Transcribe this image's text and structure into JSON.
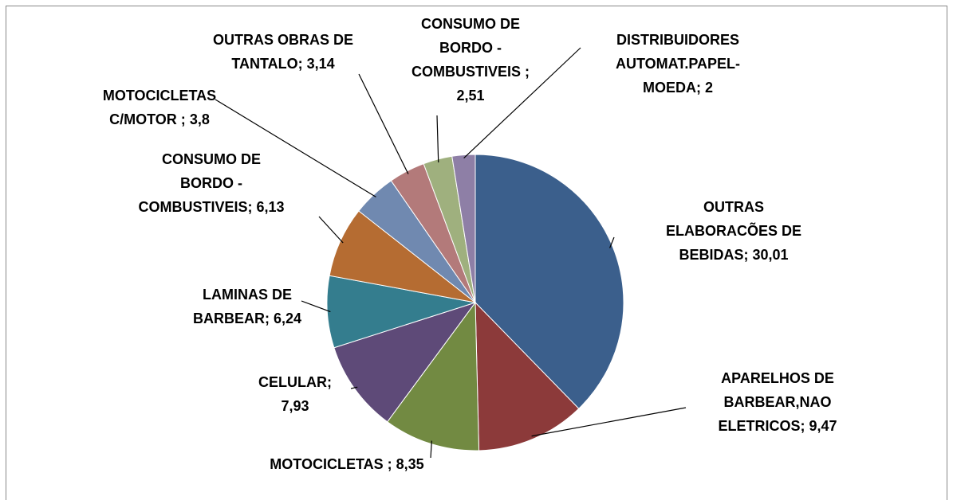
{
  "chart_data": {
    "type": "pie",
    "categories": [
      "OUTRAS ELABORACÕES DE BEBIDAS;",
      "APARELHOS DE BARBEAR,NAO ELETRICOS;",
      "MOTOCICLETAS ;",
      "CELULAR;",
      "LAMINAS DE BARBEAR;",
      "CONSUMO DE BORDO - COMBUSTIVEIS;",
      "MOTOCICLETAS C/MOTOR ;",
      "OUTRAS OBRAS DE TANTALO;",
      "CONSUMO DE BORDO - COMBUSTIVEIS ;",
      "DISTRIBUIDORES AUTOMAT.PAPEL-MOEDA;"
    ],
    "values": [
      30.01,
      9.47,
      8.35,
      7.93,
      6.24,
      6.13,
      3.8,
      3.14,
      2.51,
      2
    ],
    "value_labels": [
      "30,01",
      "9,47",
      "8,35",
      "7,93",
      "6,24",
      "6,13",
      "3,8",
      "3,14",
      "2,51",
      "2"
    ],
    "colors": [
      "#3b5f8c",
      "#8c3a3a",
      "#728a42",
      "#5e4a78",
      "#347d8e",
      "#b56c32",
      "#7089b0",
      "#b37a7a",
      "#9fb07e",
      "#8e7fa6"
    ]
  }
}
